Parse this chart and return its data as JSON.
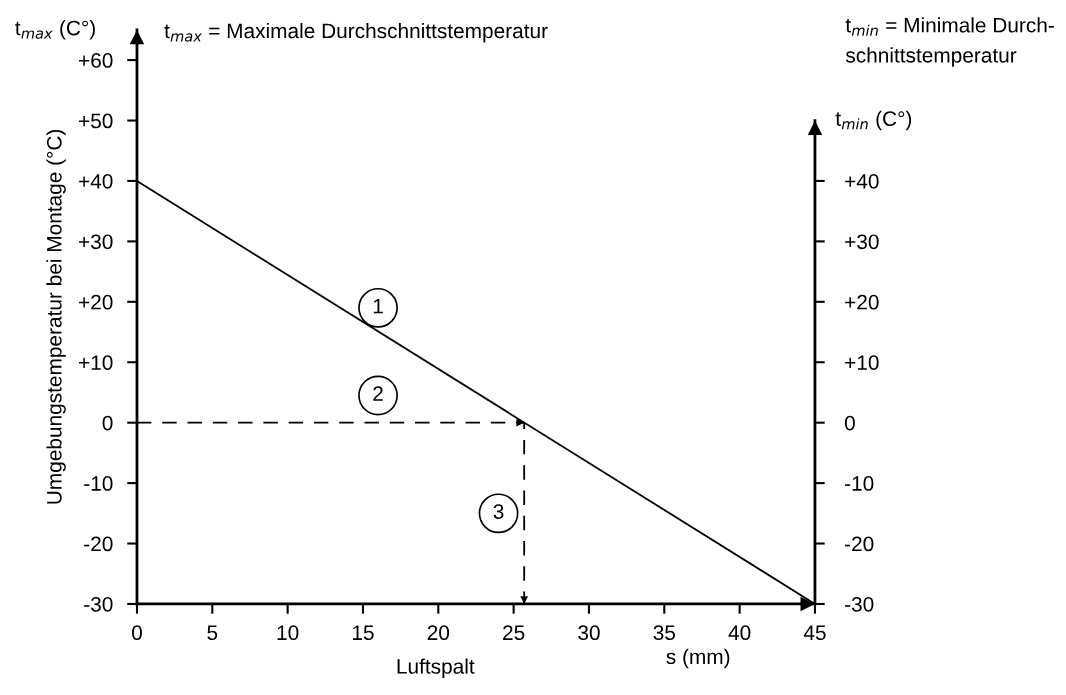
{
  "chart_data": {
    "type": "line",
    "xlabel": "Luftspalt",
    "ylabel": "Umgebungstemperatur bei Montage (°C)",
    "y2label": "t$_{min}$ (C°)",
    "xlim": [
      0,
      45
    ],
    "ylim": [
      -30,
      65
    ],
    "y2lim": [
      -30,
      65
    ],
    "xticks": [
      0,
      5,
      10,
      15,
      20,
      25,
      30,
      35,
      40,
      45
    ],
    "yticks": [
      -30,
      -20,
      -10,
      0,
      {
        "value": 10,
        "label": "+10"
      },
      {
        "value": 20,
        "label": "+20"
      },
      {
        "value": 30,
        "label": "+30"
      },
      {
        "value": 40,
        "label": "+40"
      },
      {
        "value": 50,
        "label": "+50"
      },
      {
        "value": 60,
        "label": "+60"
      }
    ],
    "y2ticks": [
      -30,
      -20,
      -10,
      0,
      {
        "value": 10,
        "label": "+10"
      },
      {
        "value": 20,
        "label": "+20"
      },
      {
        "value": 30,
        "label": "+30"
      },
      {
        "value": 40,
        "label": "+40"
      }
    ],
    "series": [
      {
        "color": "#000000",
        "line_style": "solid",
        "x": [
          0,
          45
        ],
        "values": [
          40,
          -30
        ]
      },
      {
        "color": "#000000",
        "line_style": "dashed",
        "x": [
          0,
          25.7,
          25.7
        ],
        "values": [
          0,
          0,
          -30
        ]
      }
    ],
    "annotations": [
      "t$_{max}$ (C°)",
      "t$_{max}$ = Maximale Durchschnittstemperatur",
      "t$_{min}$ = Minimale Durch-\nschnittstemperatur",
      "s (mm)",
      "1",
      "2",
      "3"
    ],
    "grid": false,
    "marker": "none"
  }
}
